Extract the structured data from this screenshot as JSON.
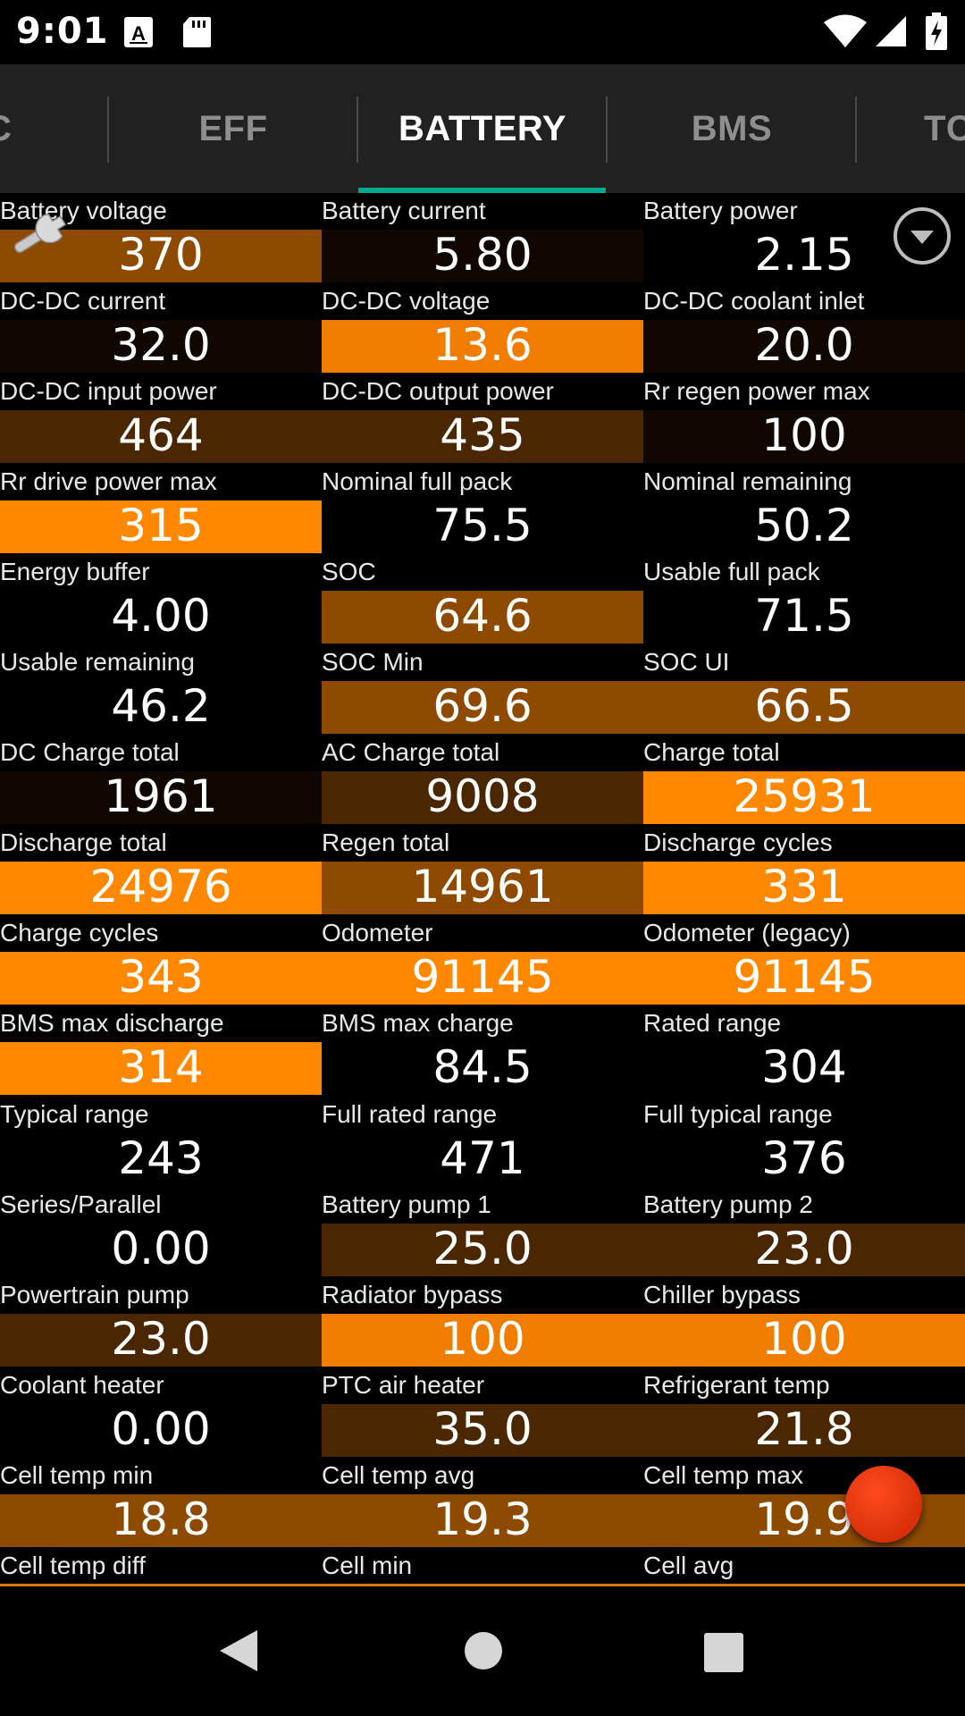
{
  "status_bar": {
    "time": "9:01",
    "icons": [
      "a-notification-icon",
      "sd-card-icon",
      "wifi-icon",
      "cell-signal-icon",
      "battery-charging-icon"
    ]
  },
  "tabs": [
    {
      "label": "AC"
    },
    {
      "label": "EFF"
    },
    {
      "label": "BATTERY",
      "active": true
    },
    {
      "label": "BMS"
    },
    {
      "label": "TC"
    }
  ],
  "colors": {
    "dark": "#100800",
    "brown": "#4a2700",
    "mid": "#8e4a00",
    "orange": "#f07c00",
    "bright": "#ff8800",
    "accent": "#00a88f",
    "tab_bar": "#212121",
    "fab": "#e0380e"
  },
  "gauges": [
    {
      "label": "Battery voltage",
      "value": "370",
      "level": "mid"
    },
    {
      "label": "Battery current",
      "value": "5.80",
      "level": "dark"
    },
    {
      "label": "Battery power",
      "value": "2.15",
      "level": "none"
    },
    {
      "label": "DC-DC current",
      "value": "32.0",
      "level": "dark"
    },
    {
      "label": "DC-DC voltage",
      "value": "13.6",
      "level": "orange"
    },
    {
      "label": "DC-DC coolant inlet",
      "value": "20.0",
      "level": "dark"
    },
    {
      "label": "DC-DC input power",
      "value": "464",
      "level": "brown"
    },
    {
      "label": "DC-DC output power",
      "value": "435",
      "level": "brown"
    },
    {
      "label": "Rr regen power max",
      "value": "100",
      "level": "dark"
    },
    {
      "label": "Rr drive power max",
      "value": "315",
      "level": "bright"
    },
    {
      "label": "Nominal full pack",
      "value": "75.5",
      "level": "none"
    },
    {
      "label": "Nominal remaining",
      "value": "50.2",
      "level": "none"
    },
    {
      "label": "Energy buffer",
      "value": "4.00",
      "level": "none"
    },
    {
      "label": "SOC",
      "value": "64.6",
      "level": "mid"
    },
    {
      "label": "Usable full pack",
      "value": "71.5",
      "level": "none"
    },
    {
      "label": "Usable remaining",
      "value": "46.2",
      "level": "none"
    },
    {
      "label": "SOC Min",
      "value": "69.6",
      "level": "mid"
    },
    {
      "label": "SOC UI",
      "value": "66.5",
      "level": "mid"
    },
    {
      "label": "DC Charge total",
      "value": "1961",
      "level": "dark"
    },
    {
      "label": "AC Charge total",
      "value": "9008",
      "level": "brown"
    },
    {
      "label": "Charge total",
      "value": "25931",
      "level": "bright"
    },
    {
      "label": "Discharge total",
      "value": "24976",
      "level": "bright"
    },
    {
      "label": "Regen total",
      "value": "14961",
      "level": "mid"
    },
    {
      "label": "Discharge cycles",
      "value": "331",
      "level": "bright"
    },
    {
      "label": "Charge cycles",
      "value": "343",
      "level": "bright"
    },
    {
      "label": "Odometer",
      "value": "91145",
      "level": "bright"
    },
    {
      "label": "Odometer (legacy)",
      "value": "91145",
      "level": "bright"
    },
    {
      "label": "BMS max discharge",
      "value": "314",
      "level": "bright"
    },
    {
      "label": "BMS max charge",
      "value": "84.5",
      "level": "none"
    },
    {
      "label": "Rated range",
      "value": "304",
      "level": "none"
    },
    {
      "label": "Typical range",
      "value": "243",
      "level": "none"
    },
    {
      "label": "Full rated range",
      "value": "471",
      "level": "none"
    },
    {
      "label": "Full typical range",
      "value": "376",
      "level": "none"
    },
    {
      "label": "Series/Parallel",
      "value": "0.00",
      "level": "none"
    },
    {
      "label": "Battery pump 1",
      "value": "25.0",
      "level": "brown"
    },
    {
      "label": "Battery pump 2",
      "value": "23.0",
      "level": "brown"
    },
    {
      "label": "Powertrain pump",
      "value": "23.0",
      "level": "brown"
    },
    {
      "label": "Radiator bypass",
      "value": "100",
      "level": "orange"
    },
    {
      "label": "Chiller bypass",
      "value": "100",
      "level": "orange"
    },
    {
      "label": "Coolant heater",
      "value": "0.00",
      "level": "none"
    },
    {
      "label": "PTC air heater",
      "value": "35.0",
      "level": "brown"
    },
    {
      "label": "Refrigerant temp",
      "value": "21.8",
      "level": "brown"
    },
    {
      "label": "Cell temp min",
      "value": "18.8",
      "level": "mid"
    },
    {
      "label": "Cell temp avg",
      "value": "19.3",
      "level": "mid"
    },
    {
      "label": "Cell temp max",
      "value": "19.9",
      "level": "mid"
    },
    {
      "label": "Cell temp diff",
      "value": "",
      "level": "none"
    },
    {
      "label": "Cell min",
      "value": "",
      "level": "none"
    },
    {
      "label": "Cell avg",
      "value": "",
      "level": "none"
    }
  ],
  "icons": {
    "wrench": "wrench-icon",
    "dropdown": "chevron-down-circle-icon",
    "record": "record-fab",
    "nav": [
      "back-icon",
      "home-icon",
      "recents-icon"
    ]
  }
}
